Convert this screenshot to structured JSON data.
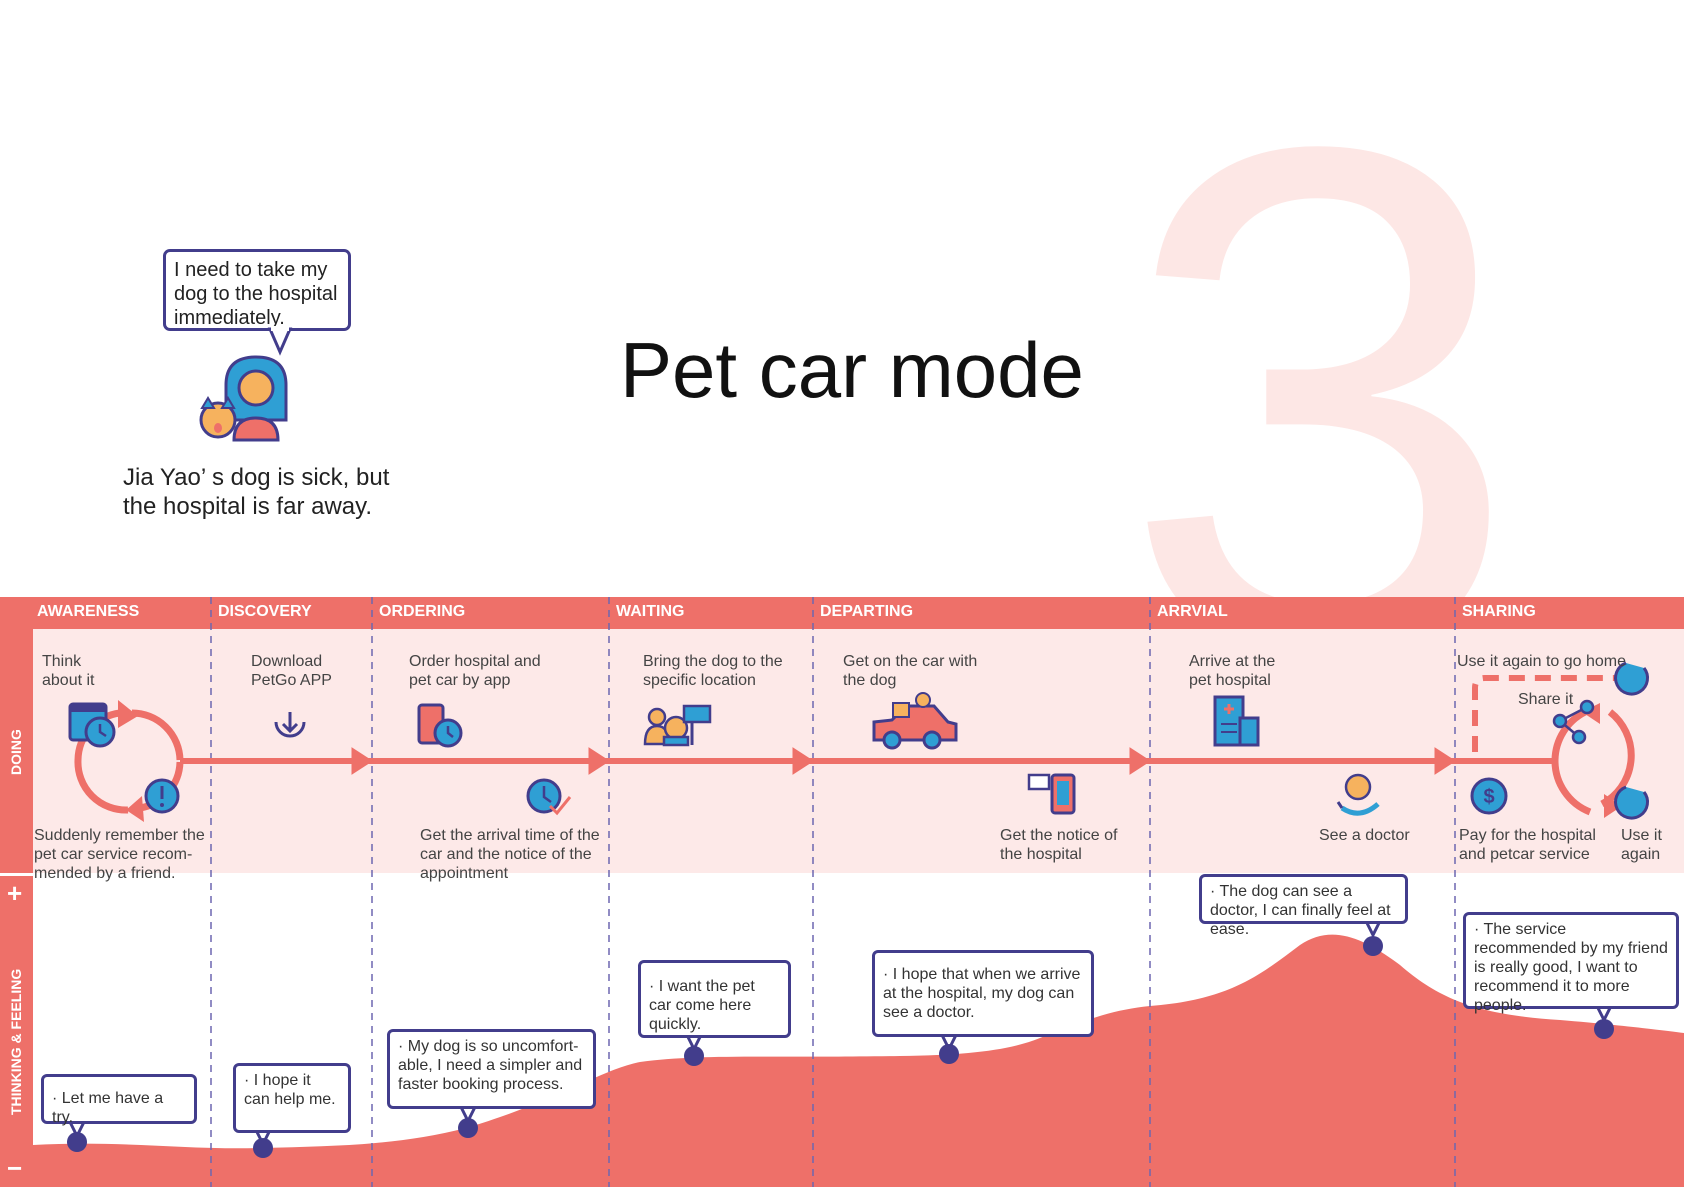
{
  "title": "Pet car mode",
  "big_number": "3",
  "persona": {
    "speech": "I need to take my dog to the hospital immediately.",
    "caption_line1": "Jia Yao’ s dog is sick, but",
    "caption_line2": "the hospital is far away."
  },
  "rows": {
    "doing": "DOING",
    "thinking": "THINKING & FEELING",
    "plus": "+",
    "minus": "−"
  },
  "stages": [
    {
      "label": "AWARENESS"
    },
    {
      "label": "DISCOVERY"
    },
    {
      "label": "ORDERING"
    },
    {
      "label": "WAITING"
    },
    {
      "label": "DEPARTING"
    },
    {
      "label": "ARRVIAL"
    },
    {
      "label": "SHARING"
    }
  ],
  "doing": [
    {
      "text_l1": "Think",
      "text_l2": "about it"
    },
    {
      "text_l1": "Suddenly remember the",
      "text_l2": "pet car service recom-",
      "text_l3": "mended by a friend."
    },
    {
      "text_l1": "Download",
      "text_l2": "PetGo APP"
    },
    {
      "text_l1": "Order hospital and",
      "text_l2": "pet car by app"
    },
    {
      "text_l1": "Get the arrival time of the",
      "text_l2": "car and the notice of the",
      "text_l3": "appointment"
    },
    {
      "text_l1": "Bring the dog to the",
      "text_l2": "specific location"
    },
    {
      "text_l1": "Get on the car with",
      "text_l2": "the dog"
    },
    {
      "text_l1": "Get  the notice of",
      "text_l2": "the  hospital"
    },
    {
      "text_l1": "Arrive at the",
      "text_l2": "pet hospital"
    },
    {
      "text_l1": "See a doctor"
    },
    {
      "text_l1": "Use it again to go home"
    },
    {
      "text_l1": "Share it"
    },
    {
      "text_l1": "Pay for the hospital",
      "text_l2": "and petcar service"
    },
    {
      "text_l1": "Use it",
      "text_l2": "again"
    }
  ],
  "thoughts": [
    {
      "text": "· Let me have a try."
    },
    {
      "text": "· I hope it can help me."
    },
    {
      "text": "· My dog is so uncomfort- able, I need a simpler and faster booking process."
    },
    {
      "text": "· I want the  pet car come here quickly."
    },
    {
      "text": "· I hope that when we arrive at the hospital, my dog can see a doctor."
    },
    {
      "text": "· The dog can see a doctor, I can finally feel at ease."
    },
    {
      "text": "· The service recommended by my friend is really good, I want to recommend it to more people."
    }
  ],
  "icons": [
    "woman-with-dog-icon",
    "calendar-clock-icon",
    "alert-icon",
    "download-icon",
    "phone-clock-icon",
    "clock-check-icon",
    "people-dog-sign-icon",
    "car-dog-icon",
    "phone-notice-icon",
    "hospital-icon",
    "hand-dog-icon",
    "dollar-icon",
    "share-icon",
    "return-icon"
  ],
  "colors": {
    "coral": "#ee7069",
    "light_pink": "#fde9e8",
    "navy": "#423d8c",
    "blue": "#2f9fd4",
    "orange": "#f6b25e"
  }
}
